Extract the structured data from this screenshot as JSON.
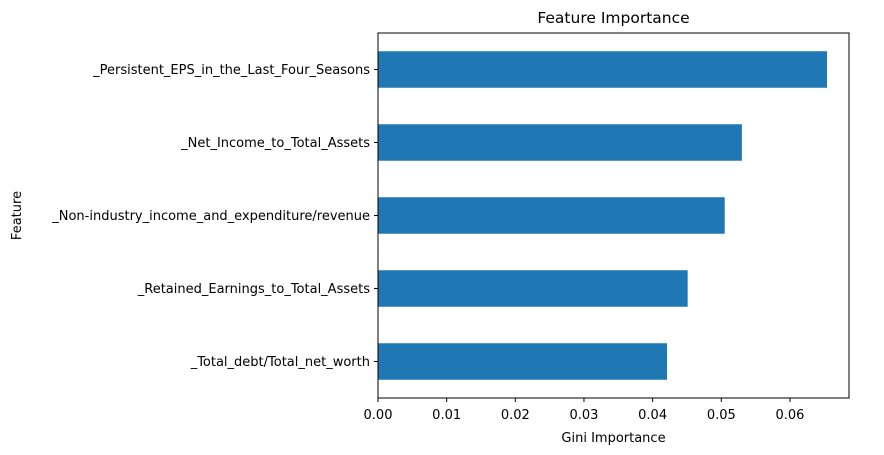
{
  "chart_data": {
    "type": "bar",
    "orientation": "horizontal",
    "title": "Feature Importance",
    "xlabel": "Gini Importance",
    "ylabel": "Feature",
    "categories": [
      "_Persistent_EPS_in_the_Last_Four_Seasons",
      "_Net_Income_to_Total_Assets",
      "_Non-industry_income_and_expenditure/revenue",
      "_Retained_Earnings_to_Total_Assets",
      "_Total_debt/Total_net_worth"
    ],
    "values": [
      0.0654,
      0.053,
      0.0505,
      0.0451,
      0.0421
    ],
    "xlim": [
      0,
      0.0686
    ],
    "xticks": [
      "0.00",
      "0.01",
      "0.02",
      "0.03",
      "0.04",
      "0.05",
      "0.06"
    ],
    "xtick_values": [
      0,
      0.01,
      0.02,
      0.03,
      0.04,
      0.05,
      0.06
    ],
    "bar_color": "#1f77b4",
    "grid": false,
    "legend": false
  }
}
